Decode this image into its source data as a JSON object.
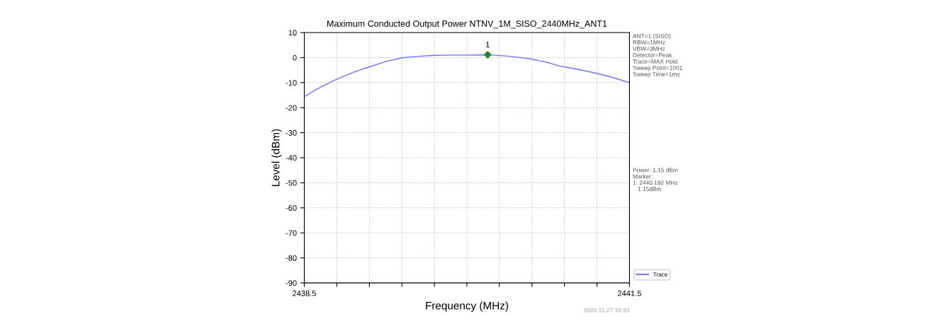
{
  "chart_data": {
    "type": "line",
    "title": "Maximum Conducted Output Power NTNV_1M_SISO_2440MHz_ANT1",
    "xlabel": "Frequency (MHz)",
    "ylabel": "Level (dBm)",
    "xlim": [
      2438.5,
      2441.5
    ],
    "ylim": [
      -90,
      10
    ],
    "xticks": [
      2438.5,
      {
        "value": 2438.8,
        "label": null
      },
      {
        "value": 2439.1,
        "label": null
      },
      {
        "value": 2439.4,
        "label": null
      },
      {
        "value": 2439.7,
        "label": null
      },
      {
        "value": 2440.0,
        "label": null
      },
      {
        "value": 2440.3,
        "label": null
      },
      {
        "value": 2440.6,
        "label": null
      },
      {
        "value": 2440.9,
        "label": null
      },
      {
        "value": 2441.2,
        "label": null
      },
      2441.5
    ],
    "yticks": [
      -90,
      -80,
      -70,
      -60,
      -50,
      -40,
      -30,
      -20,
      -10,
      0,
      10
    ],
    "grid": true,
    "legend": "bottom right",
    "line_style": "solid",
    "series": [
      {
        "name": "Trace",
        "color": "#7070ff",
        "x": [
          2438.5,
          2438.65,
          2438.8,
          2438.95,
          2439.1,
          2439.25,
          2439.4,
          2439.55,
          2439.7,
          2439.85,
          2440.0,
          2440.15,
          2440.25,
          2440.4,
          2440.6,
          2440.75,
          2440.85,
          2440.9,
          2441.05,
          2441.2,
          2441.35,
          2441.5
        ],
        "values": [
          -15.6,
          -11.8,
          -8.6,
          -5.9,
          -3.7,
          -1.6,
          -0.1,
          0.5,
          0.9,
          1.0,
          1.0,
          1.1,
          1.0,
          0.5,
          -0.6,
          -2.0,
          -3.3,
          -3.7,
          -4.9,
          -6.3,
          -8.0,
          -10.0
        ]
      },
      {
        "type": "scatter",
        "color": "#1a8a2a",
        "marker": "diamond",
        "x": [
          2440.192
        ],
        "values": [
          1.15
        ]
      }
    ],
    "annotations": [
      "ANT=1 (SISO)\nRBW=1MHz\nVBW=3MHz\nDetector=Peak\nTrace=MAX Hold\nSweep Point=1001\nSweep Time=1ms",
      "Power: 1.15 dBm\nMarker:\n1: 2440.192 MHz\n   1.15dBm",
      "2020-11-27 10:33",
      {
        "text": "1",
        "x": 2440.192,
        "y": 1.15
      }
    ]
  }
}
